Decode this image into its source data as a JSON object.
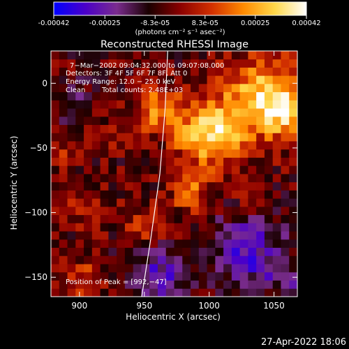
{
  "colorbar": {
    "tick_labels": [
      "-0.00042",
      "-0.00025",
      "-8.3e-05",
      "8.3e-05",
      "0.00025",
      "0.00042"
    ],
    "tick_values": [
      -0.00042,
      -0.00025,
      -8.3e-05,
      8.3e-05,
      0.00025,
      0.00042
    ],
    "range": [
      -0.00042,
      0.00042
    ],
    "unit_label": "(photons cm⁻² s⁻¹ asec⁻²)",
    "colormap": [
      "#0000ff",
      "#4b00c8",
      "#7a2c8e",
      "#1a0000",
      "#8a0000",
      "#d23000",
      "#ff8a00",
      "#ffd84a",
      "#ffffff"
    ]
  },
  "chart_data": {
    "type": "heatmap",
    "title": "Reconstructed RHESSI Image",
    "xlabel": "Heliocentric X (arcsec)",
    "ylabel": "Heliocentric Y (arcsec)",
    "xlim": [
      878,
      1068
    ],
    "ylim": [
      -165,
      25
    ],
    "x_ticks": [
      900,
      950,
      1000,
      1050
    ],
    "y_ticks": [
      0,
      -50,
      -100,
      -150
    ],
    "x_tick_labels": [
      "900",
      "950",
      "1000",
      "1050"
    ],
    "y_tick_labels": [
      "0",
      "−50",
      "−100",
      "−150"
    ],
    "annotations": [
      "7−Mar−2002 09:04:32.000 to 09:07:08.000",
      "Detectors: 3F 4F 5F 6F 7F 8F, Att 0",
      "Energy Range: 12.0 − 25.0 keV",
      "Clean",
      "Total counts: 2.48E+03"
    ],
    "peak_label": "Position of Peak = [992,−47]",
    "peak": [
      992,
      -47
    ],
    "grid": false,
    "legend": "colorbar-top",
    "limb_line": [
      [
        948,
        -165
      ],
      [
        955,
        -120
      ],
      [
        962,
        -70
      ],
      [
        966,
        -20
      ],
      [
        968,
        25
      ]
    ],
    "value_range": [
      -0.00042,
      0.00042
    ],
    "cells": 30,
    "sources": [
      [
        1000,
        -40,
        25,
        0.9
      ],
      [
        1040,
        -10,
        30,
        0.8
      ],
      [
        960,
        -20,
        18,
        0.6
      ],
      [
        985,
        -85,
        14,
        0.5
      ],
      [
        950,
        -110,
        15,
        0.35
      ],
      [
        905,
        -95,
        15,
        0.3
      ],
      [
        900,
        -150,
        15,
        0.35
      ],
      [
        890,
        -55,
        12,
        0.25
      ],
      [
        1060,
        -20,
        20,
        0.6
      ],
      [
        1030,
        -85,
        12,
        0.25
      ],
      [
        925,
        -40,
        12,
        0.2
      ]
    ],
    "negatives": [
      [
        1030,
        -130,
        28,
        0.6
      ],
      [
        960,
        -150,
        22,
        0.55
      ],
      [
        895,
        -15,
        15,
        0.3
      ],
      [
        1060,
        -150,
        15,
        0.3
      ]
    ]
  },
  "footer": {
    "timestamp": "27-Apr-2022 18:06"
  }
}
